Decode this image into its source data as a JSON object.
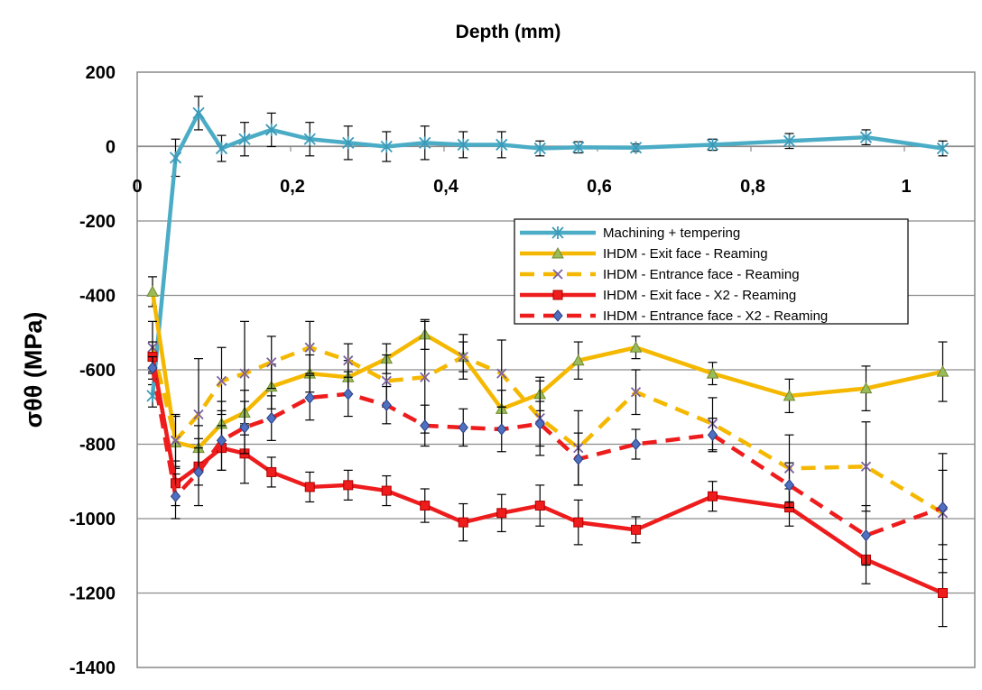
{
  "chart_data": {
    "type": "line",
    "xlabel": "Depth (mm)",
    "ylabel": "σθθ (MPa)",
    "xlim": [
      0,
      1.09
    ],
    "ylim": [
      -1400,
      200
    ],
    "x_ticks": [
      0,
      0.2,
      0.4,
      0.6,
      0.8,
      1
    ],
    "x_tick_labels": [
      "0",
      "0,2",
      "0,4",
      "0,6",
      "0,8",
      "1"
    ],
    "y_ticks": [
      200,
      0,
      -200,
      -400,
      -600,
      -800,
      -1000,
      -1200,
      -1400
    ],
    "y_tick_labels": [
      "200",
      "0",
      "-200",
      "-400",
      "-600",
      "-800",
      "-1000",
      "-1200",
      "-1400"
    ],
    "grid": "horizontal",
    "legend_position": "center-right",
    "series": [
      {
        "name": "Machining + tempering",
        "color": "#4bacc6",
        "dash": "solid",
        "marker": "star",
        "x": [
          0.02,
          0.05,
          0.08,
          0.11,
          0.14,
          0.175,
          0.225,
          0.275,
          0.325,
          0.375,
          0.425,
          0.475,
          0.525,
          0.575,
          0.65,
          0.75,
          0.85,
          0.95,
          1.05
        ],
        "y": [
          -670,
          -30,
          90,
          -5,
          20,
          45,
          20,
          10,
          0,
          10,
          5,
          5,
          -5,
          -2,
          -3,
          5,
          15,
          25,
          -5
        ],
        "err": [
          30,
          50,
          45,
          35,
          45,
          45,
          45,
          45,
          40,
          45,
          35,
          35,
          20,
          15,
          10,
          15,
          20,
          20,
          20
        ]
      },
      {
        "name": "IHDM - Exit face - Reaming",
        "color": "#f5b800",
        "dash": "solid",
        "marker": "triangle",
        "x": [
          0.02,
          0.05,
          0.08,
          0.11,
          0.14,
          0.175,
          0.225,
          0.275,
          0.325,
          0.375,
          0.425,
          0.475,
          0.525,
          0.575,
          0.65,
          0.75,
          0.85,
          0.95,
          1.05
        ],
        "y": [
          -390,
          -795,
          -810,
          -745,
          -715,
          -645,
          -610,
          -620,
          -570,
          -505,
          -565,
          -705,
          -665,
          -575,
          -540,
          -610,
          -670,
          -650,
          -605
        ],
        "err": [
          40,
          70,
          60,
          60,
          60,
          60,
          50,
          45,
          40,
          40,
          40,
          50,
          45,
          50,
          30,
          30,
          45,
          60,
          80
        ]
      },
      {
        "name": "IHDM - Entrance face - Reaming",
        "color": "#f5b800",
        "dash": "dashed",
        "marker": "x",
        "x": [
          0.02,
          0.05,
          0.08,
          0.11,
          0.14,
          0.175,
          0.225,
          0.275,
          0.325,
          0.375,
          0.425,
          0.475,
          0.525,
          0.575,
          0.65,
          0.75,
          0.85,
          0.95,
          1.05
        ],
        "y": [
          -540,
          -790,
          -720,
          -630,
          -610,
          -580,
          -540,
          -575,
          -630,
          -620,
          -565,
          -610,
          -730,
          -810,
          -660,
          -745,
          -865,
          -860,
          -985
        ],
        "err": [
          70,
          70,
          150,
          90,
          140,
          70,
          70,
          45,
          70,
          150,
          60,
          90,
          100,
          100,
          60,
          70,
          90,
          120,
          160
        ]
      },
      {
        "name": "IHDM - Exit face - X2 - Reaming",
        "color": "#ee1c1c",
        "dash": "solid",
        "marker": "square",
        "x": [
          0.02,
          0.05,
          0.08,
          0.11,
          0.14,
          0.175,
          0.225,
          0.275,
          0.325,
          0.375,
          0.425,
          0.475,
          0.525,
          0.575,
          0.65,
          0.75,
          0.85,
          0.95,
          1.05
        ],
        "y": [
          -565,
          -905,
          -860,
          -810,
          -825,
          -875,
          -915,
          -910,
          -925,
          -965,
          -1010,
          -985,
          -965,
          -1010,
          -1030,
          -940,
          -970,
          -1110,
          -1200
        ],
        "err": [
          40,
          60,
          50,
          60,
          80,
          40,
          40,
          40,
          40,
          45,
          50,
          50,
          55,
          60,
          35,
          40,
          50,
          65,
          90
        ]
      },
      {
        "name": "IHDM - Entrance face - X2 - Reaming",
        "color": "#ee1c1c",
        "dash": "dashed",
        "marker": "diamond",
        "x": [
          0.02,
          0.05,
          0.08,
          0.11,
          0.14,
          0.175,
          0.225,
          0.275,
          0.325,
          0.375,
          0.425,
          0.475,
          0.525,
          0.575,
          0.65,
          0.75,
          0.85,
          0.95,
          1.05
        ],
        "y": [
          -595,
          -940,
          -875,
          -790,
          -755,
          -730,
          -675,
          -665,
          -695,
          -750,
          -755,
          -760,
          -745,
          -840,
          -800,
          -775,
          -910,
          -1045,
          -970
        ],
        "err": [
          30,
          60,
          90,
          80,
          70,
          60,
          60,
          60,
          50,
          55,
          50,
          60,
          60,
          70,
          40,
          45,
          60,
          80,
          100
        ]
      }
    ]
  }
}
